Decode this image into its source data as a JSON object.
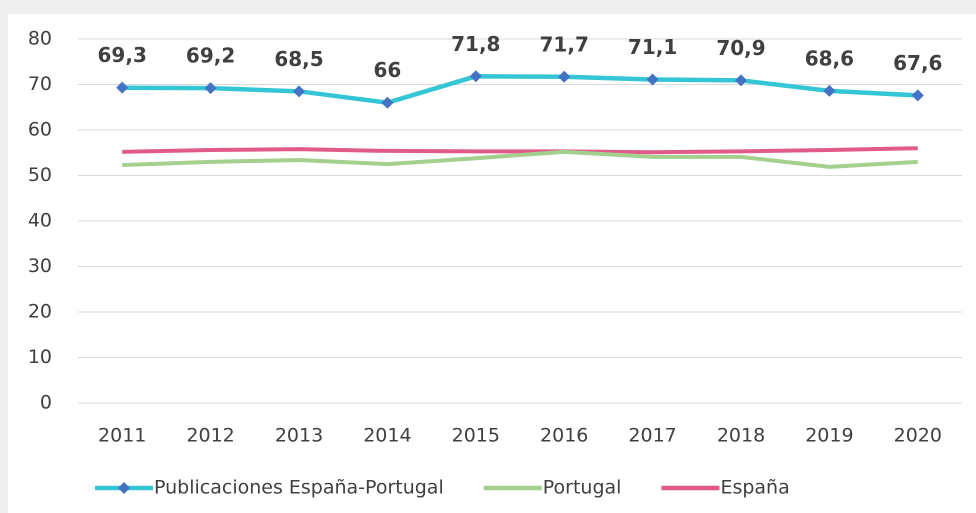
{
  "chart_data": {
    "type": "line",
    "categories": [
      "2011",
      "2012",
      "2013",
      "2014",
      "2015",
      "2016",
      "2017",
      "2018",
      "2019",
      "2020"
    ],
    "series": [
      {
        "name": "Publicaciones España-Portugal",
        "color": "#35c6d6",
        "marker_color": "#4472c4",
        "values": [
          69.3,
          69.2,
          68.5,
          66,
          71.8,
          71.7,
          71.1,
          70.9,
          68.6,
          67.6
        ],
        "value_labels": [
          "69,3",
          "69,2",
          "68,5",
          "66",
          "71,8",
          "71,7",
          "71,1",
          "70,9",
          "68,6",
          "67,6"
        ]
      },
      {
        "name": "Portugal",
        "color": "#a3d08d",
        "values": [
          52.3,
          53.0,
          53.4,
          52.5,
          53.8,
          55.2,
          54.1,
          54.1,
          51.9,
          53.0
        ]
      },
      {
        "name": "España",
        "color": "#e05b8b",
        "values": [
          55.2,
          55.6,
          55.8,
          55.4,
          55.3,
          55.3,
          55.1,
          55.3,
          55.6,
          56.0
        ]
      }
    ],
    "ylim": [
      0,
      80
    ],
    "yticks": [
      0,
      10,
      20,
      30,
      40,
      50,
      60,
      70,
      80
    ],
    "grid": true,
    "legend": "bottom"
  }
}
